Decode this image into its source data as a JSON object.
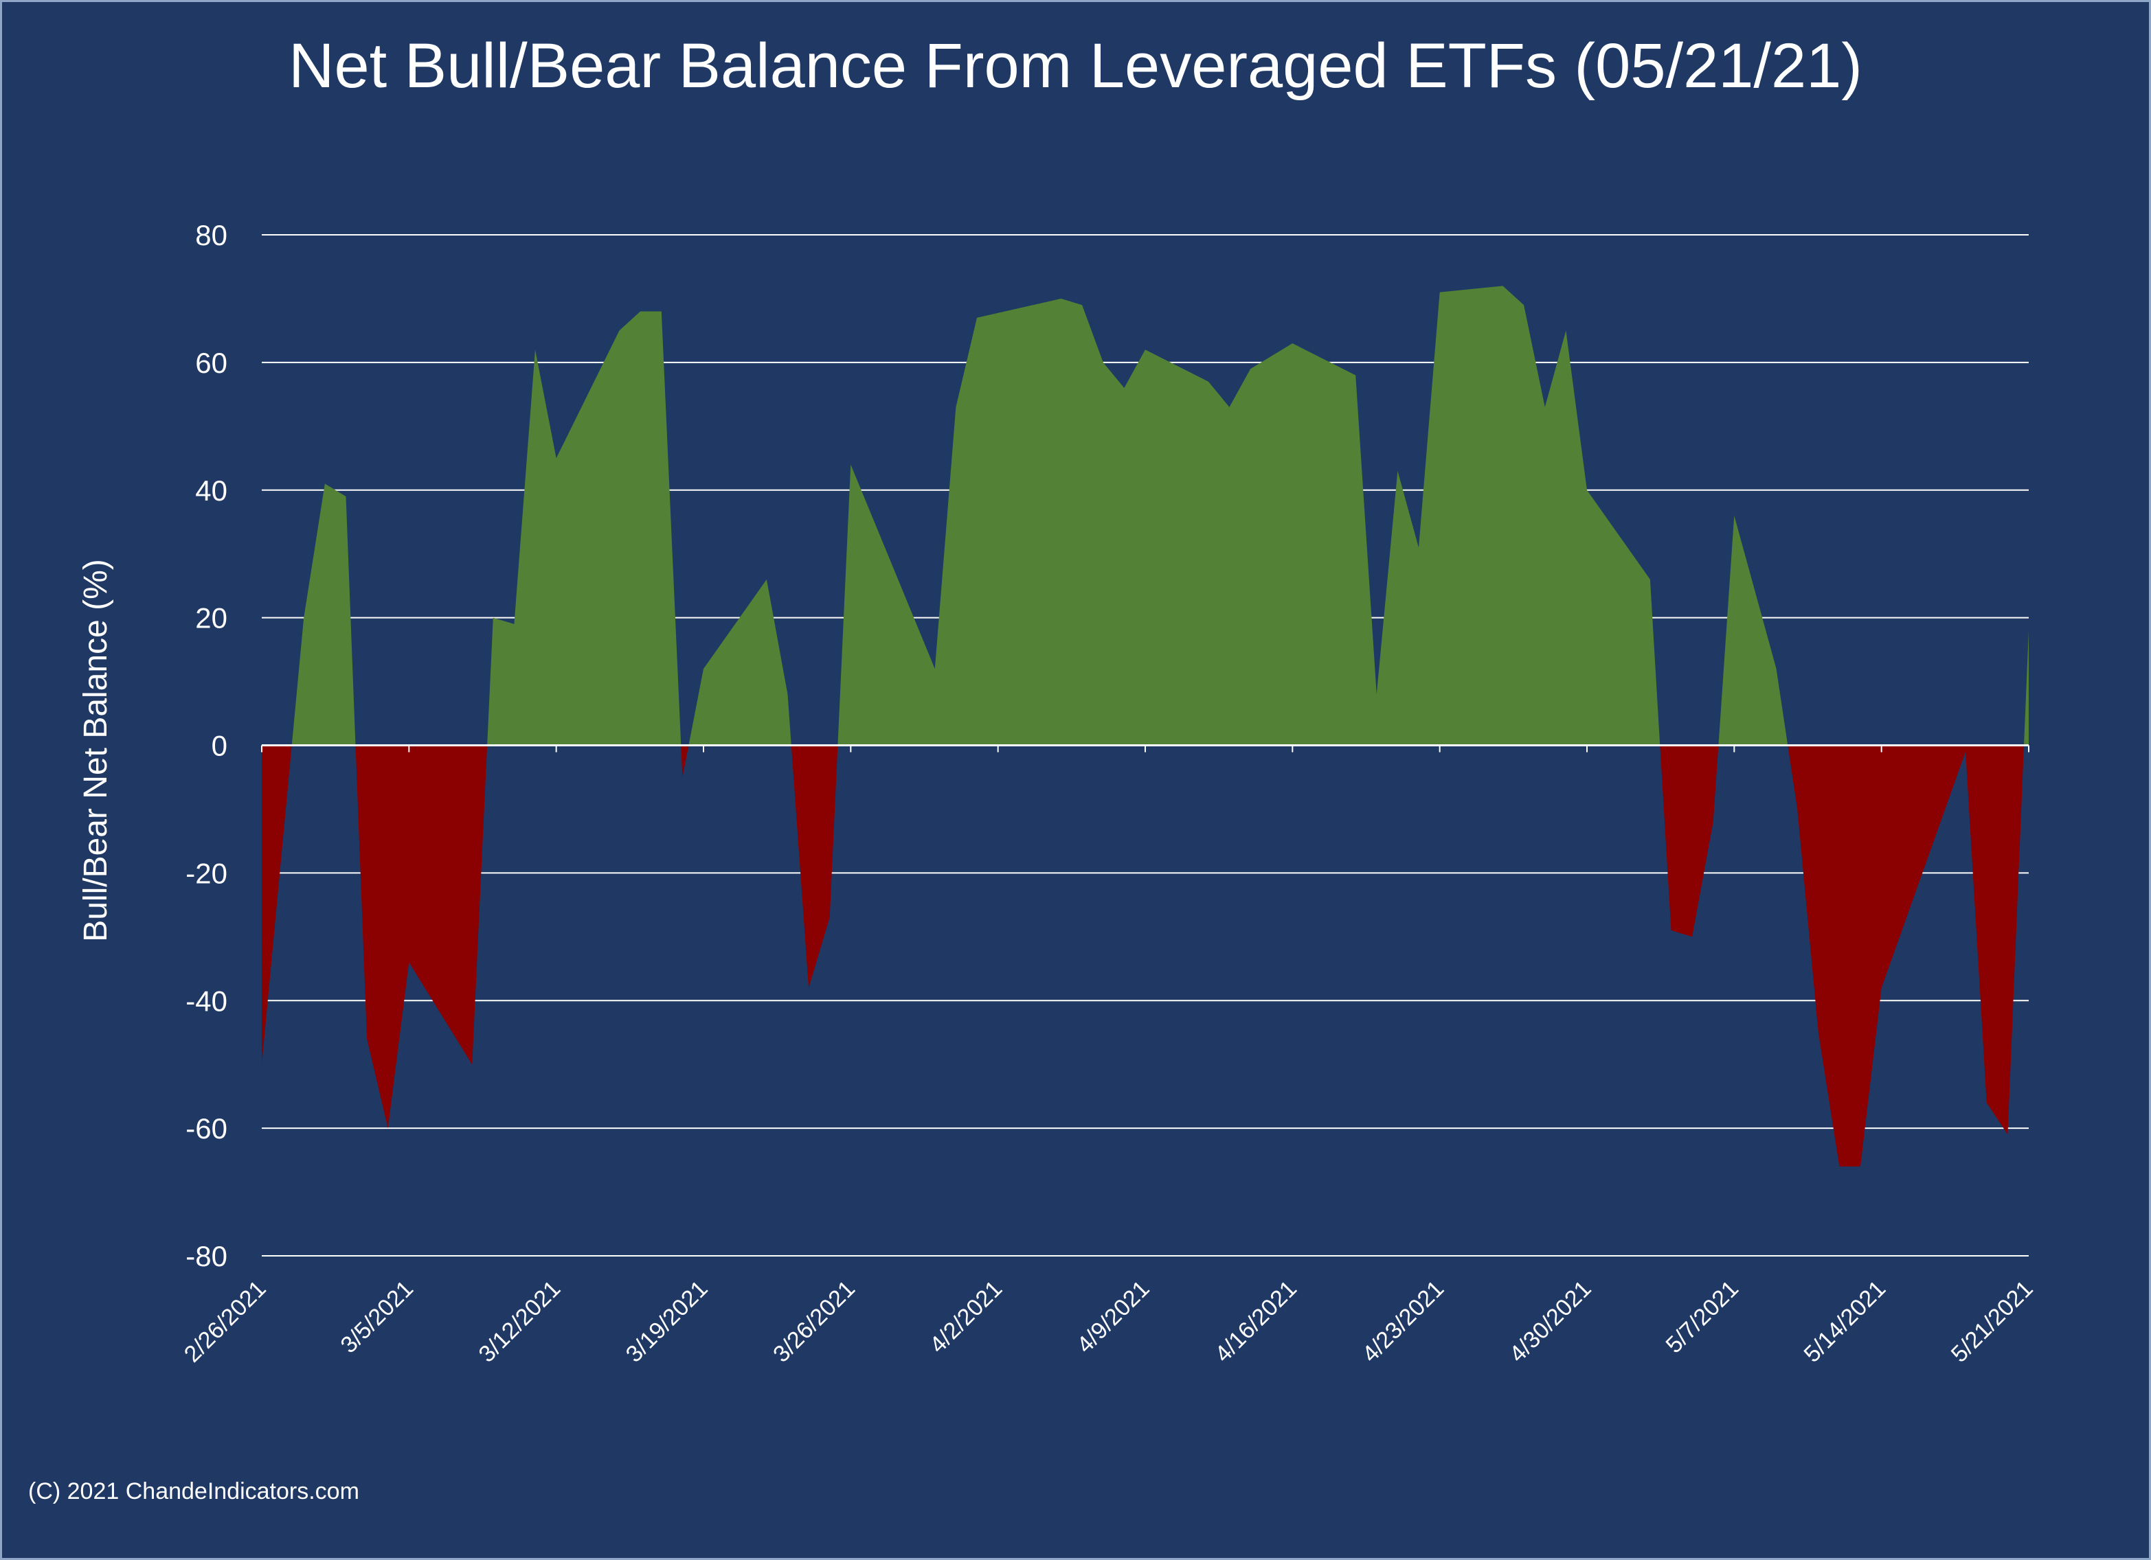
{
  "chart_data": {
    "type": "area",
    "title": "Net Bull/Bear Balance From Leveraged ETFs (05/21/21)",
    "xlabel": "",
    "ylabel": "Bull/Bear Net Balance (%)",
    "ylim": [
      -80,
      80
    ],
    "yticks": [
      80,
      60,
      40,
      20,
      0,
      -20,
      -40,
      -60,
      -80
    ],
    "x_tick_labels": [
      "2/26/2021",
      "3/5/2021",
      "3/12/2021",
      "3/19/2021",
      "3/26/2021",
      "4/2/2021",
      "4/9/2021",
      "4/16/2021",
      "4/23/2021",
      "4/30/2021",
      "5/7/2021",
      "5/14/2021",
      "5/21/2021"
    ],
    "grid": true,
    "legend": false,
    "colors": {
      "background": "#1f3864",
      "positive": "#538135",
      "negative": "#8b0000",
      "grid": "#ffffff",
      "text": "#ffffff"
    },
    "series": [
      {
        "name": "Bull/Bear net balance",
        "points": [
          [
            0,
            -50
          ],
          [
            2,
            20
          ],
          [
            3,
            41
          ],
          [
            4,
            39
          ],
          [
            5,
            -46
          ],
          [
            6,
            -60
          ],
          [
            7,
            -34
          ],
          [
            10,
            -50
          ],
          [
            11,
            20
          ],
          [
            12,
            19
          ],
          [
            13,
            62
          ],
          [
            14,
            45
          ],
          [
            17,
            65
          ],
          [
            18,
            68
          ],
          [
            19,
            68
          ],
          [
            20,
            -5
          ],
          [
            21,
            12
          ],
          [
            24,
            26
          ],
          [
            25,
            8
          ],
          [
            26,
            -38
          ],
          [
            27,
            -27
          ],
          [
            28,
            44
          ],
          [
            32,
            12
          ],
          [
            33,
            53
          ],
          [
            34,
            67
          ],
          [
            38,
            70
          ],
          [
            39,
            69
          ],
          [
            40,
            60
          ],
          [
            41,
            56
          ],
          [
            42,
            62
          ],
          [
            45,
            57
          ],
          [
            46,
            53
          ],
          [
            47,
            59
          ],
          [
            48,
            61
          ],
          [
            49,
            63
          ],
          [
            52,
            58
          ],
          [
            53,
            8
          ],
          [
            54,
            43
          ],
          [
            55,
            31
          ],
          [
            56,
            71
          ],
          [
            59,
            72
          ],
          [
            60,
            69
          ],
          [
            61,
            53
          ],
          [
            62,
            65
          ],
          [
            63,
            40
          ],
          [
            66,
            26
          ],
          [
            67,
            -29
          ],
          [
            68,
            -30
          ],
          [
            69,
            -12
          ],
          [
            70,
            36
          ],
          [
            72,
            12
          ],
          [
            73,
            -10
          ],
          [
            74,
            -45
          ],
          [
            75,
            -66
          ],
          [
            76,
            -66
          ],
          [
            77,
            -38
          ],
          [
            81,
            -1
          ],
          [
            82,
            -56
          ],
          [
            83,
            -61
          ],
          [
            84,
            18
          ]
        ]
      }
    ]
  },
  "footer": {
    "copyright": "(C) 2021 ChandeIndicators.com"
  }
}
